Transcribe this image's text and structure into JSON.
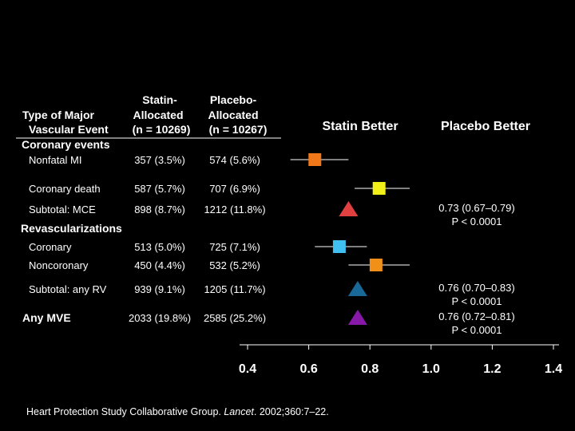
{
  "header": {
    "col_type_line1": "Type of Major",
    "col_type_line2": "Vascular Event",
    "col_statin_line1": "Statin-",
    "col_statin_line2": "Allocated",
    "col_statin_line3": "(n = 10269)",
    "col_placebo_line1": "Placebo-",
    "col_placebo_line2": "Allocated",
    "col_placebo_line3": "(n = 10267)",
    "statin_better": "Statin Better",
    "placebo_better": "Placebo Better"
  },
  "sections": {
    "coronary": "Coronary events",
    "revasc": "Revascularizations"
  },
  "citation": {
    "prefix": "Heart Protection Study Collaborative Group. ",
    "journal": "Lancet",
    "suffix": ". 2002;360:7–22."
  },
  "chart_data": {
    "type": "forest",
    "xlim": [
      0.4,
      1.4
    ],
    "xticks": [
      "0.4",
      "0.6",
      "0.8",
      "1.0",
      "1.2",
      "1.4"
    ],
    "xtick_values": [
      0.4,
      0.6,
      0.8,
      1.0,
      1.2,
      1.4
    ],
    "reference_line": 1.0,
    "rows": [
      {
        "label": "Nonfatal MI",
        "statin": "357 (3.5%)",
        "placebo": "574 (5.6%)",
        "estimate": 0.62,
        "ci": [
          0.54,
          0.73
        ],
        "marker": "square",
        "color": "#f07818",
        "label_style": "normal"
      },
      {
        "label": "Coronary death",
        "statin": "587 (5.7%)",
        "placebo": "707 (6.9%)",
        "estimate": 0.83,
        "ci": [
          0.75,
          0.93
        ],
        "marker": "square",
        "color": "#f0f018",
        "label_style": "normal"
      },
      {
        "label": "Subtotal: MCE",
        "statin": "898 (8.7%)",
        "placebo": "1212 (11.8%)",
        "estimate": 0.73,
        "ci": [
          0.67,
          0.79
        ],
        "marker": "triangle",
        "color": "#e04040",
        "label_style": "normal",
        "result": "0.73 (0.67–0.79)",
        "p": "P < 0.0001"
      },
      {
        "label": "Coronary",
        "statin": "513 (5.0%)",
        "placebo": "725 (7.1%)",
        "estimate": 0.7,
        "ci": [
          0.62,
          0.79
        ],
        "marker": "square",
        "color": "#40c0f0",
        "label_style": "normal"
      },
      {
        "label": "Noncoronary",
        "statin": "450 (4.4%)",
        "placebo": "532 (5.2%)",
        "estimate": 0.82,
        "ci": [
          0.73,
          0.93
        ],
        "marker": "square",
        "color": "#f09018",
        "label_style": "normal"
      },
      {
        "label": "Subtotal: any RV",
        "statin": "939 (9.1%)",
        "placebo": "1205 (11.7%)",
        "estimate": 0.76,
        "ci": [
          0.7,
          0.83
        ],
        "marker": "triangle",
        "color": "#186898",
        "label_style": "normal",
        "result": "0.76 (0.70–0.83)",
        "p": "P < 0.0001"
      },
      {
        "label": "Any MVE",
        "statin": "2033 (19.8%)",
        "placebo": "2585 (25.2%)",
        "estimate": 0.76,
        "ci": [
          0.72,
          0.81
        ],
        "marker": "triangle",
        "color": "#8818a8",
        "label_style": "bold",
        "result": "0.76 (0.72–0.81)",
        "p": "P < 0.0001"
      }
    ]
  }
}
